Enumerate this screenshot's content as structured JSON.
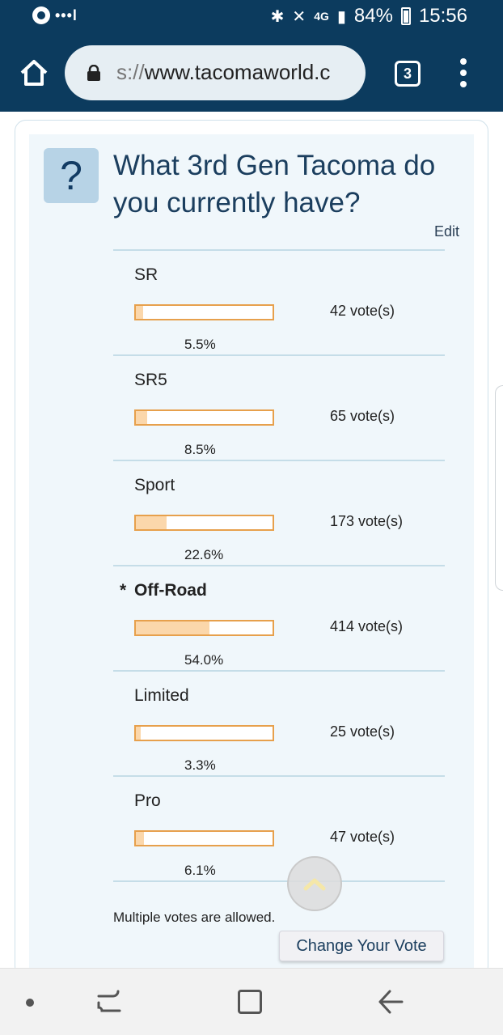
{
  "status_bar": {
    "signal_dots": "•••l",
    "network": "4G",
    "battery": "84%",
    "time": "15:56"
  },
  "browser": {
    "url_scheme": "s://",
    "url_host": "www.tacomaworld.c",
    "tab_count": "3"
  },
  "poll": {
    "icon_glyph": "?",
    "question": "What 3rd Gen Tacoma do you currently have?",
    "edit_label": "Edit",
    "options": [
      {
        "label": "SR",
        "votes": "42 vote(s)",
        "percent": "5.5%",
        "fraction": 0.055,
        "voted": false
      },
      {
        "label": "SR5",
        "votes": "65 vote(s)",
        "percent": "8.5%",
        "fraction": 0.085,
        "voted": false
      },
      {
        "label": "Sport",
        "votes": "173 vote(s)",
        "percent": "22.6%",
        "fraction": 0.226,
        "voted": false
      },
      {
        "label": "Off-Road",
        "votes": "414 vote(s)",
        "percent": "54.0%",
        "fraction": 0.54,
        "voted": true,
        "voted_marker": "*"
      },
      {
        "label": "Limited",
        "votes": "25 vote(s)",
        "percent": "3.3%",
        "fraction": 0.033,
        "voted": false
      },
      {
        "label": "Pro",
        "votes": "47 vote(s)",
        "percent": "6.1%",
        "fraction": 0.061,
        "voted": false
      }
    ],
    "multiple_note": "Multiple votes are allowed.",
    "change_vote_label": "Change Your Vote"
  },
  "colors": {
    "header": "#0c3b5e",
    "bar_border": "#e7a04c",
    "bar_fill": "#fbd7ab",
    "title": "#1b3e5e"
  },
  "icons": {
    "home": "home-icon",
    "lock": "lock-icon",
    "menu": "more-vert-icon",
    "scroll_top": "chevron-up-icon",
    "back": "back-arrow-icon"
  }
}
